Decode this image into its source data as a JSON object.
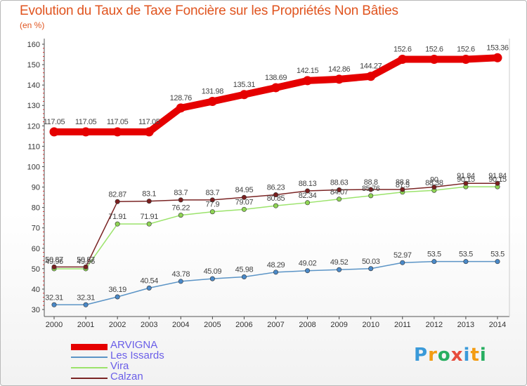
{
  "chart_data": {
    "type": "line",
    "title": "Evolution du Taux de Taxe Foncière sur les Propriétés Non Bâties",
    "subtitle": "(en %)",
    "x": [
      2000,
      2001,
      2002,
      2003,
      2004,
      2005,
      2006,
      2007,
      2008,
      2009,
      2010,
      2011,
      2012,
      2013,
      2014
    ],
    "ylim": [
      30,
      160
    ],
    "yticks": [
      30,
      40,
      50,
      60,
      70,
      80,
      90,
      100,
      110,
      120,
      130,
      140,
      150,
      160
    ],
    "grid": false,
    "legend": "bottom-left",
    "series": [
      {
        "name": "ARVIGNA",
        "color": "#e50000",
        "marker_fill": "#e50000",
        "values": [
          117.05,
          117.05,
          117.05,
          117.05,
          128.76,
          131.98,
          135.31,
          138.69,
          142.15,
          142.86,
          144.27,
          152.6,
          152.6,
          152.6,
          153.36
        ],
        "labels": [
          "117.05",
          "117.05",
          "117.05",
          "117.05",
          "128.76",
          "131.98",
          "135.31",
          "138.69",
          "142.15",
          "142.86",
          "144.27",
          "152.6",
          "152.6",
          "152.6",
          "153.36"
        ]
      },
      {
        "name": "Les Issards",
        "color": "#5b94c6",
        "marker_fill": "#4a89c8",
        "values": [
          32.31,
          32.31,
          36.19,
          40.54,
          43.78,
          45.09,
          45.98,
          48.29,
          49.02,
          49.52,
          50.03,
          52.97,
          53.5,
          53.5,
          53.5
        ],
        "labels": [
          "32.31",
          "32.31",
          "36.19",
          "40.54",
          "43.78",
          "45.09",
          "45.98",
          "48.29",
          "49.02",
          "49.52",
          "50.03",
          "52.97",
          "53.5",
          "53.5",
          "53.5"
        ]
      },
      {
        "name": "Vira",
        "color": "#9be36b",
        "marker_fill": "#8fd454",
        "values": [
          49.96,
          49.96,
          71.91,
          71.91,
          76.22,
          77.9,
          79.07,
          80.85,
          82.34,
          84.07,
          85.76,
          87.5,
          88.38,
          90.15,
          90.15
        ],
        "labels": [
          "49.96",
          "49.96",
          "71.91",
          "71.91",
          "76.22",
          "77.9",
          "79.07",
          "80.85",
          "82.34",
          "84.07",
          "85.76",
          "87.5",
          "88.38",
          "90.15",
          "90.15"
        ]
      },
      {
        "name": "Calzan",
        "color": "#7a2424",
        "marker_fill": "#7a1f1f",
        "values": [
          50.87,
          50.87,
          82.87,
          83.1,
          83.7,
          83.7,
          84.95,
          86.23,
          88.13,
          88.63,
          88.8,
          88.8,
          90.0,
          91.84,
          91.84
        ],
        "labels": [
          "50.87",
          "50.87",
          "82.87",
          "83.1",
          "83.7",
          "83.7",
          "84.95",
          "86.23",
          "88.13",
          "88.63",
          "88.8",
          "88.8",
          "90",
          "91.84",
          "91.84"
        ]
      }
    ]
  },
  "logo": {
    "letters": [
      "P",
      "r",
      "o",
      "x",
      "i",
      "t",
      "i"
    ],
    "colors": [
      "#3a9ad9",
      "#f39c12",
      "#27ae60",
      "#e74c3c",
      "#3a9ad9",
      "#f39c12",
      "#27ae60"
    ]
  }
}
